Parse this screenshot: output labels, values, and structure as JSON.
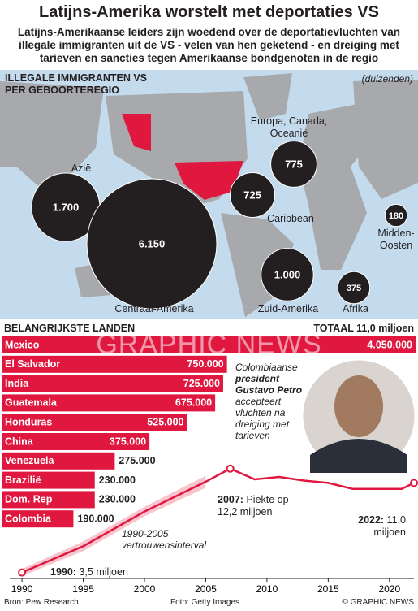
{
  "title": "Latijns-Amerika worstelt met deportaties VS",
  "subtitle": "Latijns-Amerikaanse leiders zijn woedend over de deportatievluchten van illegale immigranten uit de VS - velen van hen geketend - en dreiging met tarieven en sancties tegen Amerikaanse bondgenoten in de regio",
  "chart_data": [
    {
      "type": "bubble",
      "title": [
        "ILLEGALE IMMIGRANTEN VS",
        "PER GEBOORTEREGIO"
      ],
      "unit": "(duizenden)",
      "categories": [
        "Azië",
        "Centraal-Amerika",
        "Europa, Canada, Oceanië",
        "Caribbean",
        "Zuid-Amerika",
        "Midden-Oosten",
        "Afrika"
      ],
      "values": [
        1700,
        6150,
        775,
        725,
        1000,
        180,
        375
      ],
      "value_labels": [
        "1.700",
        "6.150",
        "775",
        "725",
        "1.000",
        "180",
        "375"
      ],
      "color": "#231f20"
    },
    {
      "type": "bar",
      "title": "BELANGRIJKSTE LANDEN",
      "total": "TOTAAL 11,0 miljoen",
      "categories": [
        "Mexico",
        "El Salvador",
        "India",
        "Guatemala",
        "Honduras",
        "China",
        "Venezuela",
        "Brazilië",
        "Dom. Rep",
        "Colombia"
      ],
      "values": [
        4050000,
        750000,
        725000,
        675000,
        525000,
        375000,
        275000,
        230000,
        230000,
        190000
      ],
      "value_labels": [
        "4.050.000",
        "750.000",
        "725.000",
        "675.000",
        "525.000",
        "375.000",
        "275.000",
        "230.000",
        "230.000",
        "190.000"
      ],
      "color": "#e0173f",
      "log_scale": true,
      "xlim": [
        100000,
        4050000
      ]
    },
    {
      "type": "line",
      "color": "#e0173f",
      "x": [
        1990,
        1995,
        2000,
        2005,
        2007,
        2009,
        2011,
        2013,
        2015,
        2017,
        2019,
        2021,
        2022
      ],
      "values": [
        3.5,
        5.7,
        8.6,
        11.1,
        12.2,
        11.3,
        11.5,
        11.2,
        11.0,
        10.5,
        10.5,
        10.5,
        11.0
      ],
      "ci_low": [
        3.2,
        5.3,
        8.2,
        10.6,
        null,
        null,
        null,
        null,
        null,
        null,
        null,
        null,
        null
      ],
      "ci_high": [
        3.8,
        6.1,
        9.0,
        11.6,
        null,
        null,
        null,
        null,
        null,
        null,
        null,
        null,
        null
      ],
      "ci_label": "1990-2005 vertrouwensinterval",
      "xlim": [
        1989,
        2022
      ],
      "xticks": [
        1990,
        1995,
        2000,
        2005,
        2010,
        2015,
        2020
      ],
      "ylim": [
        3,
        13
      ],
      "annotations": [
        {
          "x": 1990,
          "label": "1990:",
          "text": "3,5 miljoen"
        },
        {
          "x": 2007,
          "label": "2007:",
          "text": "Piekte op 12,2 miljoen"
        },
        {
          "x": 2022,
          "label": "2022:",
          "text": "11,0 miljoen"
        }
      ]
    }
  ],
  "quote": {
    "lead": "Colombiaanse",
    "name": "president Gustavo Petro",
    "text": "accepteert vluchten na dreiging met tarieven"
  },
  "watermark": "GRAPHIC NEWS",
  "footer": {
    "source": "Bron: Pew Research",
    "photo": "Foto: Getty Images",
    "credit": "© GRAPHIC NEWS"
  }
}
